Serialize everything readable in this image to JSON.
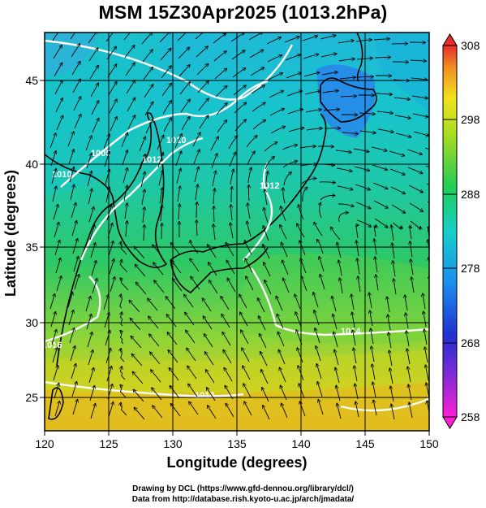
{
  "title": "MSM 15Z30Apr2025 (1013.2hPa)",
  "xlabel": "Longitude (degrees)",
  "ylabel": "Latitude  (degrees)",
  "x_ticks": [
    "120",
    "125",
    "130",
    "135",
    "140",
    "145",
    "150"
  ],
  "y_ticks": [
    "25",
    "30",
    "35",
    "40",
    "45"
  ],
  "colorbar_ticks": [
    "308",
    "298",
    "288",
    "278",
    "268",
    "258"
  ],
  "contour_labels": [
    "1008",
    "1010",
    "1010",
    "1012",
    "1012",
    "1014",
    "1016",
    "1018"
  ],
  "footer": {
    "line1": "Drawing by DCL (https://www.gfd-dennou.org/library/dcl/)",
    "line2": "Data from http://database.rish.kyoto-u.ac.jp/arch/jmadata/"
  },
  "colors": {
    "cold": "#2a7df0",
    "cool": "#16c8c8",
    "mild": "#2ed06a",
    "warm": "#a9de22",
    "hot": "#f0b418",
    "land_outline": "#000000",
    "isobar": "#ffffff"
  },
  "chart_data": {
    "type": "map",
    "field": "surface temperature (K) with isobars (hPa) and wind streamlines",
    "xlim": [
      120,
      150
    ],
    "ylim": [
      22.5,
      47.5
    ],
    "colorbar_range": [
      258,
      308
    ]
  }
}
